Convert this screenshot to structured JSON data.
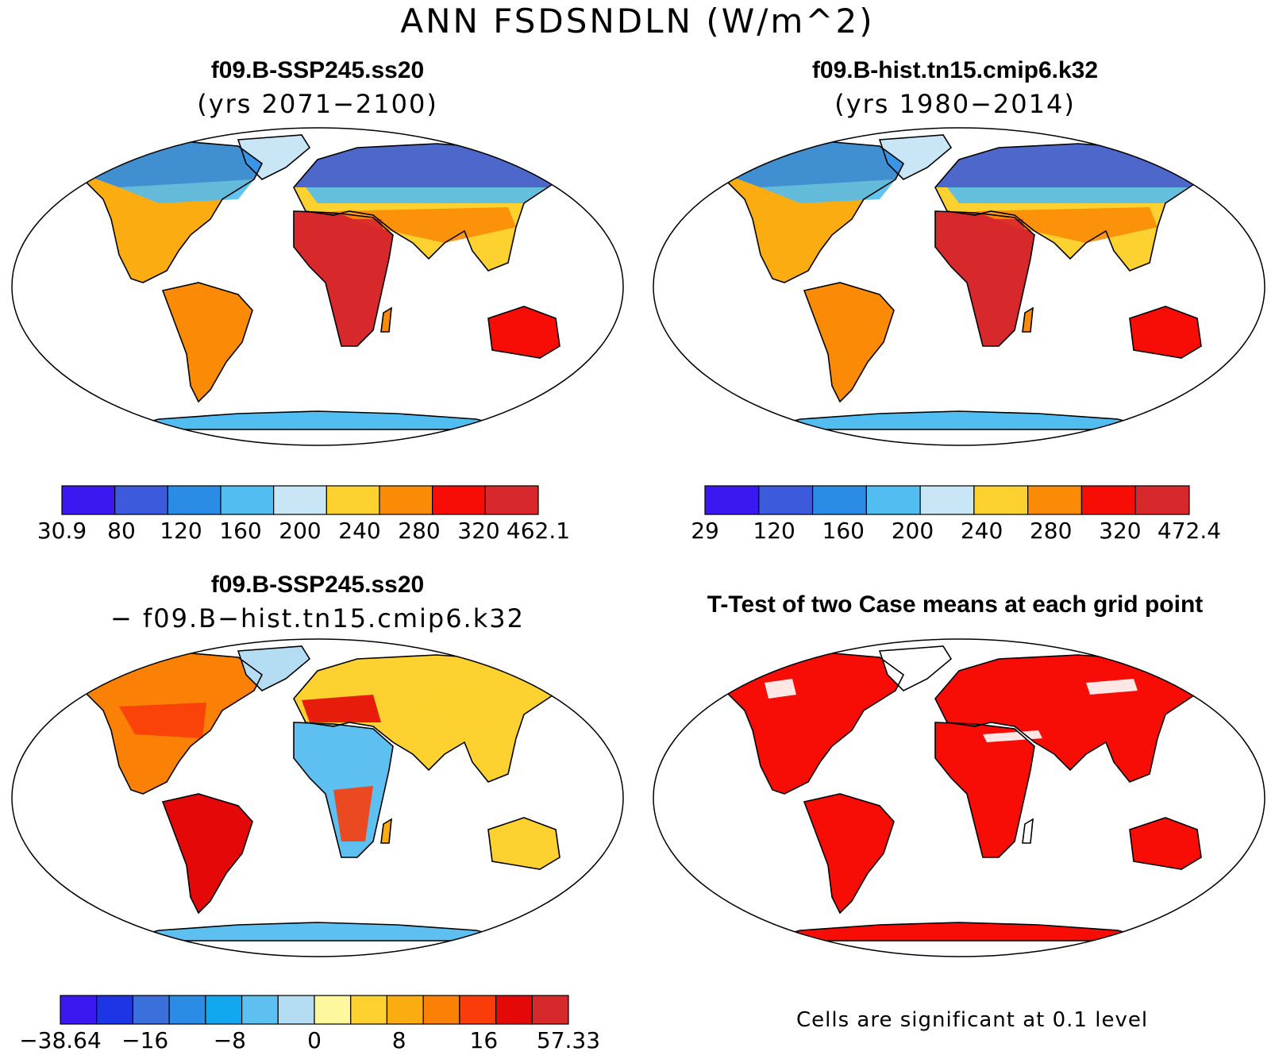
{
  "figure": {
    "title": "ANN FSDSNDLN (W/m^2)"
  },
  "panels": {
    "p1": {
      "title": "f09.B-SSP245.ss20",
      "subtitle": "(yrs 2071−2100)",
      "colorbar": {
        "colors": [
          "#3c18f0",
          "#3b5bdc",
          "#2b8ce6",
          "#52bdf0",
          "#c8e6f6",
          "#fcd130",
          "#fb8b06",
          "#f80d06",
          "#d7282c"
        ],
        "labels": [
          "30.9",
          "80",
          "120",
          "160",
          "200",
          "240",
          "280",
          "320",
          "462.1"
        ]
      }
    },
    "p2": {
      "title": "f09.B-hist.tn15.cmip6.k32",
      "subtitle": "(yrs 1980−2014)",
      "colorbar": {
        "colors": [
          "#3c18f0",
          "#3b5bdc",
          "#2b8ce6",
          "#52bdf0",
          "#c8e6f6",
          "#fcd130",
          "#fb8b06",
          "#f80d06",
          "#d7282c"
        ],
        "labels": [
          "29",
          "120",
          "160",
          "200",
          "240",
          "280",
          "320",
          "472.4"
        ]
      }
    },
    "p3": {
      "title": "f09.B-SSP245.ss20",
      "subtitle": "− f09.B−hist.tn15.cmip6.k32",
      "colorbar": {
        "colors": [
          "#3c18f0",
          "#1e35e6",
          "#3b6fdc",
          "#2b8ce6",
          "#12a8f0",
          "#5ec0f0",
          "#b4ddf4",
          "#fdf89e",
          "#fcd130",
          "#fbac10",
          "#fb8006",
          "#fa3c0a",
          "#e40808",
          "#d7282c"
        ],
        "labels": [
          "−38.64",
          "−16",
          "−8",
          "0",
          "8",
          "16",
          "57.33"
        ]
      }
    },
    "p4": {
      "title": "T-Test of two Case means at each grid point",
      "note": "Cells are significant at 0.1 level",
      "significant_color": "#f80d06"
    }
  }
}
